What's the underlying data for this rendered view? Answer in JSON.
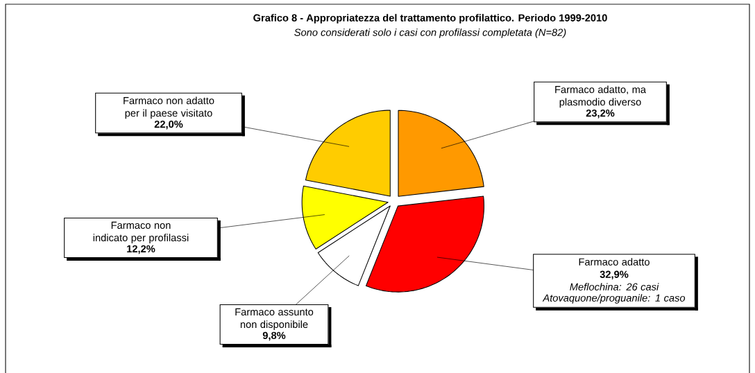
{
  "chart_data": {
    "type": "pie",
    "title": "Grafico 8 - Appropriatezza del trattamento profilattico. Periodo 1999-2010",
    "subtitle": "Sono considerati solo i casi con profilassi completata (N=82)",
    "categories": [
      "Farmaco adatto, ma plasmodio diverso",
      "Farmaco adatto",
      "Farmaco assunto non disponibile",
      "Farmaco non indicato per profilassi",
      "Farmaco non adatto per il paese visitato"
    ],
    "values": [
      23.2,
      32.9,
      9.8,
      12.2,
      22.0
    ],
    "value_labels": [
      "23,2%",
      "32,9%",
      "9,8%",
      "12,2%",
      "22,0%"
    ],
    "colors": [
      "#ff9900",
      "#ff0000",
      "#ffffff",
      "#ffff00",
      "#ffcc00"
    ],
    "annotations": [
      "Meflochina: 26 casi",
      "Atovaquone/proguanile:  1 caso"
    ]
  }
}
